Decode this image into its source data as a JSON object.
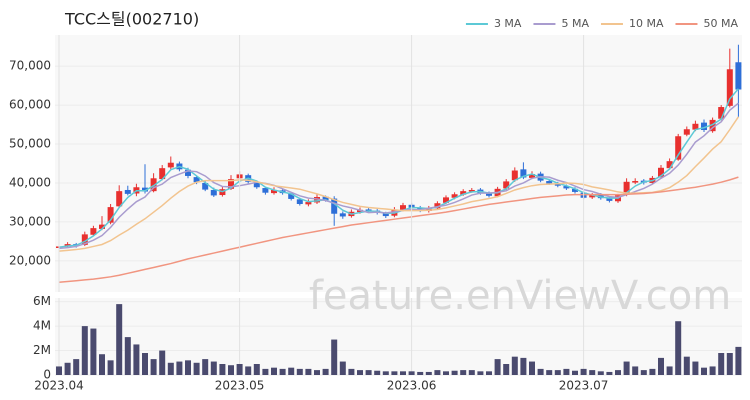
{
  "chart_data": [
    {
      "type": "candlestick",
      "title": "TCC스틸(002710)",
      "watermark": "feature.enViewV.com",
      "up_color": "#e8302f",
      "down_color": "#2e6fd8",
      "grid": true,
      "legend": "top-right",
      "ylim": [
        12000,
        78000
      ],
      "yticks": [
        {
          "value": 20000,
          "label": "20,000"
        },
        {
          "value": 30000,
          "label": "30,000"
        },
        {
          "value": 40000,
          "label": "40,000"
        },
        {
          "value": 50000,
          "label": "50,000"
        },
        {
          "value": 60000,
          "label": "60,000"
        },
        {
          "value": 70000,
          "label": "70,000"
        }
      ],
      "open": [
        23300,
        23700,
        24300,
        24100,
        26700,
        28200,
        29800,
        34000,
        38200,
        37300,
        38800,
        37900,
        41000,
        44000,
        45000,
        43400,
        41500,
        40000,
        38200,
        36900,
        38500,
        41200,
        42000,
        40200,
        38700,
        37400,
        38100,
        37300,
        35800,
        34500,
        35000,
        36500,
        36000,
        32200,
        31500,
        32500,
        33200,
        32900,
        32200,
        31600,
        33100,
        34400,
        33600,
        32800,
        33500,
        34900,
        36200,
        37000,
        37800,
        38300,
        37400,
        36600,
        38600,
        40700,
        43500,
        41300,
        42400,
        40500,
        39800,
        39200,
        38500,
        37500,
        36300,
        37000,
        36000,
        35300,
        37000,
        40100,
        40600,
        40000,
        41500,
        43800,
        46000,
        52400,
        53700,
        55500,
        53300,
        56500,
        59800,
        71000
      ],
      "high": [
        24000,
        24800,
        24600,
        27500,
        29000,
        31500,
        34600,
        39400,
        39300,
        39800,
        44800,
        42500,
        44600,
        46800,
        45500,
        43900,
        41900,
        40600,
        38800,
        39200,
        42000,
        43000,
        42400,
        40600,
        39000,
        38900,
        38500,
        37600,
        36200,
        35800,
        37200,
        36800,
        36600,
        32700,
        33200,
        33700,
        33600,
        33300,
        32600,
        33800,
        34900,
        34900,
        34100,
        34100,
        35300,
        36800,
        37600,
        38400,
        38700,
        38700,
        37800,
        39000,
        41000,
        44000,
        45300,
        43000,
        42900,
        40900,
        40300,
        39600,
        38900,
        37900,
        37400,
        37400,
        36400,
        37200,
        41200,
        41200,
        41000,
        41800,
        44600,
        46300,
        52600,
        54500,
        56000,
        56300,
        56800,
        60000,
        74500,
        75500
      ],
      "low": [
        23000,
        23400,
        23400,
        23800,
        26300,
        27900,
        29400,
        33600,
        36800,
        36600,
        37300,
        37600,
        40700,
        43500,
        43000,
        41200,
        39700,
        37900,
        36400,
        36500,
        38200,
        40800,
        39900,
        38500,
        37000,
        37000,
        37000,
        35500,
        34200,
        34000,
        34600,
        35200,
        29000,
        30800,
        31100,
        32100,
        32400,
        31900,
        31000,
        31200,
        32700,
        33300,
        32500,
        32400,
        33100,
        34600,
        35800,
        36700,
        37500,
        37000,
        36300,
        36300,
        38200,
        40300,
        41000,
        41000,
        40200,
        39500,
        38900,
        38200,
        37300,
        35800,
        35900,
        35700,
        35000,
        34900,
        36600,
        39700,
        39600,
        39700,
        41100,
        43400,
        45700,
        52000,
        53300,
        53100,
        52900,
        56100,
        59400,
        57000
      ],
      "close": [
        23700,
        24300,
        23900,
        26800,
        28400,
        29300,
        33800,
        37900,
        37200,
        38900,
        37800,
        41200,
        43800,
        45200,
        43500,
        41800,
        40200,
        38300,
        36800,
        38400,
        41000,
        42200,
        40300,
        38900,
        37500,
        38200,
        37400,
        35900,
        34600,
        35100,
        36400,
        35600,
        32100,
        31400,
        32600,
        33100,
        32800,
        32300,
        31500,
        33200,
        34300,
        33700,
        32900,
        33600,
        34800,
        36300,
        37100,
        37900,
        38200,
        37300,
        36700,
        38500,
        40400,
        43200,
        41400,
        42300,
        40600,
        39900,
        39300,
        38600,
        37700,
        36200,
        36900,
        36100,
        35400,
        36800,
        40300,
        40500,
        40100,
        41300,
        43900,
        45600,
        52000,
        53800,
        55200,
        53600,
        56200,
        59500,
        69200,
        64000
      ],
      "series": [
        {
          "name": "3 MA",
          "color": "#5cc9d6",
          "values": [
            23500,
            23800,
            24000,
            25000,
            26400,
            28200,
            30500,
            33700,
            36300,
            38000,
            38000,
            39300,
            40900,
            43400,
            44200,
            43500,
            41800,
            40100,
            38400,
            37800,
            38700,
            40500,
            41200,
            40500,
            38900,
            38200,
            37700,
            37200,
            36000,
            35200,
            35400,
            35700,
            34700,
            33000,
            32000,
            32400,
            32800,
            32700,
            32200,
            32300,
            33000,
            33700,
            33600,
            33400,
            33800,
            34900,
            36100,
            37100,
            37700,
            37800,
            37400,
            37500,
            38500,
            40700,
            41700,
            42300,
            41400,
            40900,
            39900,
            39300,
            38500,
            37500,
            36900,
            36400,
            36100,
            36100,
            37500,
            39200,
            40300,
            40600,
            41800,
            43600,
            47200,
            50500,
            53700,
            54200,
            55000,
            56400,
            61600,
            64200
          ]
        },
        {
          "name": "5 MA",
          "color": "#a99ccf",
          "values": [
            23200,
            23400,
            23700,
            24400,
            25300,
            26500,
            28600,
            31200,
            33300,
            35200,
            36400,
            38800,
            39700,
            41400,
            42300,
            43100,
            42900,
            41800,
            40100,
            39100,
            39000,
            39300,
            39700,
            40200,
            39900,
            39400,
            38500,
            37600,
            36700,
            36100,
            35900,
            35500,
            34800,
            34100,
            33600,
            33000,
            32400,
            32500,
            32300,
            32600,
            33000,
            33200,
            33100,
            33500,
            33900,
            34300,
            35000,
            35900,
            36900,
            37400,
            37400,
            37600,
            38000,
            39200,
            40000,
            41200,
            41600,
            41500,
            40700,
            40100,
            39200,
            38300,
            37800,
            37100,
            36500,
            36300,
            37000,
            37800,
            38600,
            39700,
            41200,
            42500,
            44600,
            47400,
            50500,
            52100,
            54200,
            55700,
            58700,
            60500
          ]
        },
        {
          "name": "10 MA",
          "color": "#f2c48f",
          "values": [
            22500,
            22700,
            22900,
            23200,
            23700,
            24200,
            25200,
            26600,
            27900,
            29400,
            30800,
            32500,
            34200,
            36100,
            37800,
            39200,
            40200,
            40600,
            40600,
            40600,
            40600,
            40800,
            40700,
            40300,
            39800,
            39300,
            39000,
            38700,
            38400,
            37800,
            37200,
            36500,
            35700,
            35000,
            34500,
            34000,
            33700,
            33500,
            33300,
            33100,
            32900,
            32900,
            32900,
            33000,
            33200,
            33600,
            34100,
            34600,
            35200,
            35600,
            36000,
            36500,
            37300,
            38200,
            38800,
            39300,
            39600,
            39700,
            39800,
            40000,
            39900,
            39600,
            39000,
            38600,
            38200,
            37700,
            37400,
            37400,
            37500,
            37600,
            38000,
            38800,
            40200,
            41900,
            44200,
            46400,
            48700,
            50600,
            53700,
            57000
          ]
        },
        {
          "name": "50 MA",
          "color": "#f19580",
          "values": [
            14500,
            14700,
            14900,
            15100,
            15300,
            15600,
            15900,
            16300,
            16800,
            17300,
            17800,
            18300,
            18800,
            19300,
            19900,
            20500,
            21000,
            21500,
            22000,
            22500,
            23000,
            23500,
            24000,
            24500,
            25000,
            25500,
            26000,
            26400,
            26800,
            27200,
            27600,
            28000,
            28400,
            28800,
            29200,
            29500,
            29800,
            30100,
            30400,
            30700,
            31000,
            31300,
            31600,
            31900,
            32200,
            32500,
            32900,
            33300,
            33700,
            34100,
            34500,
            34800,
            35100,
            35400,
            35700,
            36000,
            36300,
            36500,
            36700,
            36900,
            37000,
            37000,
            37000,
            37000,
            37000,
            37000,
            37100,
            37200,
            37300,
            37500,
            37700,
            38000,
            38300,
            38600,
            38900,
            39300,
            39700,
            40200,
            40800,
            41500
          ]
        }
      ]
    },
    {
      "type": "bar",
      "color": "#4a4a6e",
      "grid": true,
      "categories": [
        "2023.04",
        null,
        null,
        null,
        null,
        null,
        null,
        null,
        null,
        null,
        null,
        null,
        null,
        null,
        null,
        null,
        null,
        null,
        null,
        null,
        null,
        "2023.05",
        null,
        null,
        null,
        null,
        null,
        null,
        null,
        null,
        null,
        null,
        null,
        null,
        null,
        null,
        null,
        null,
        null,
        null,
        null,
        "2023.06",
        null,
        null,
        null,
        null,
        null,
        null,
        null,
        null,
        null,
        null,
        null,
        null,
        null,
        null,
        null,
        null,
        null,
        null,
        null,
        "2023.07",
        null,
        null,
        null,
        null,
        null,
        null,
        null,
        null,
        null,
        null,
        null,
        null,
        null,
        null,
        null,
        null,
        null,
        null
      ],
      "values": [
        700000,
        1000000,
        1300000,
        4000000,
        3800000,
        1700000,
        1200000,
        5800000,
        3100000,
        2500000,
        1800000,
        1300000,
        2000000,
        1000000,
        1100000,
        1200000,
        1000000,
        1300000,
        1100000,
        900000,
        800000,
        900000,
        700000,
        900000,
        500000,
        600000,
        500000,
        600000,
        500000,
        500000,
        400000,
        500000,
        2900000,
        1100000,
        500000,
        400000,
        400000,
        350000,
        300000,
        300000,
        300000,
        300000,
        250000,
        250000,
        400000,
        300000,
        350000,
        400000,
        400000,
        300000,
        300000,
        1300000,
        900000,
        1500000,
        1400000,
        1100000,
        500000,
        400000,
        400000,
        500000,
        350000,
        500000,
        400000,
        300000,
        250000,
        400000,
        1100000,
        700000,
        400000,
        500000,
        1400000,
        700000,
        4400000,
        1500000,
        1100000,
        600000,
        700000,
        1800000,
        1800000,
        2300000
      ],
      "ylim": [
        0,
        6300000
      ],
      "yticks": [
        0,
        {
          "value": 2000000,
          "label": "2M"
        },
        {
          "value": 4000000,
          "label": "4M"
        },
        {
          "value": 6000000,
          "label": "6M"
        }
      ]
    }
  ]
}
